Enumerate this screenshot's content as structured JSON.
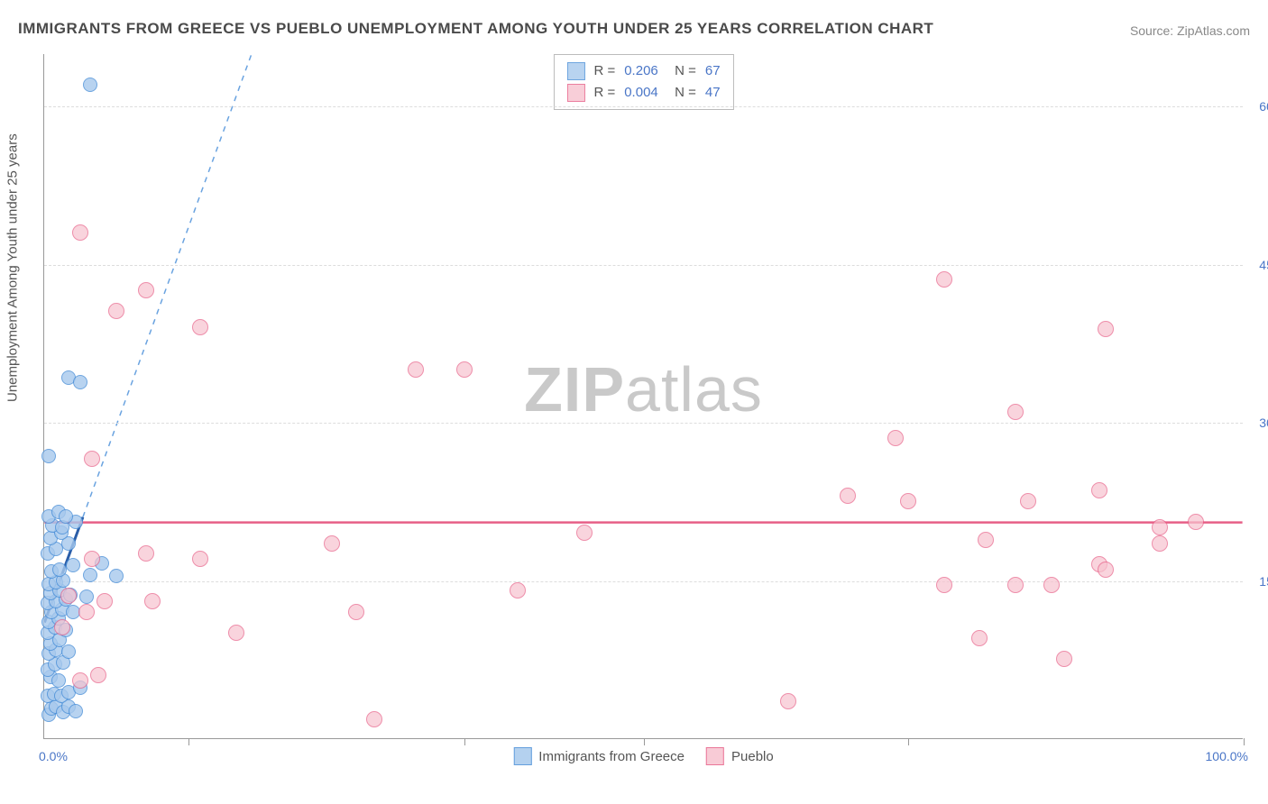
{
  "title": "IMMIGRANTS FROM GREECE VS PUEBLO UNEMPLOYMENT AMONG YOUTH UNDER 25 YEARS CORRELATION CHART",
  "source_label": "Source:",
  "source_name": "ZipAtlas.com",
  "yaxis_title": "Unemployment Among Youth under 25 years",
  "watermark_bold": "ZIP",
  "watermark_rest": "atlas",
  "xlim": [
    0,
    100
  ],
  "ylim": [
    0,
    65
  ],
  "xlabel_min": "0.0%",
  "xlabel_max": "100.0%",
  "yticks": [
    {
      "v": 15,
      "label": "15.0%"
    },
    {
      "v": 30,
      "label": "30.0%"
    },
    {
      "v": 45,
      "label": "45.0%"
    },
    {
      "v": 60,
      "label": "60.0%"
    }
  ],
  "xticks": [
    12,
    35,
    50,
    72,
    100
  ],
  "series": [
    {
      "name": "Immigrants from Greece",
      "color_fill": "#a7c9ed",
      "color_stroke": "#4a8fd8",
      "marker_radius": 8,
      "fill_opacity": 0.55,
      "R": "0.206",
      "N": "67",
      "trend": {
        "type": "line_dashed_extend",
        "x1": 0,
        "y1": 11,
        "x2": 3.2,
        "y2": 21,
        "solid_until_x": 3.2,
        "dash_color": "#6aa3e0",
        "solid_color": "#2a5da8",
        "solid_width": 3,
        "dash_width": 1.5
      },
      "points": [
        [
          0.4,
          2.2
        ],
        [
          0.6,
          2.8
        ],
        [
          1.0,
          3.0
        ],
        [
          1.6,
          2.5
        ],
        [
          2.0,
          3.0
        ],
        [
          2.6,
          2.6
        ],
        [
          0.3,
          4.0
        ],
        [
          0.8,
          4.2
        ],
        [
          1.4,
          4.0
        ],
        [
          2.0,
          4.4
        ],
        [
          3.0,
          4.8
        ],
        [
          0.5,
          5.8
        ],
        [
          1.2,
          5.5
        ],
        [
          0.3,
          6.5
        ],
        [
          0.9,
          7.0
        ],
        [
          1.6,
          7.2
        ],
        [
          0.4,
          8.0
        ],
        [
          1.0,
          8.4
        ],
        [
          2.0,
          8.2
        ],
        [
          0.5,
          9.0
        ],
        [
          1.3,
          9.3
        ],
        [
          0.3,
          10.0
        ],
        [
          0.9,
          10.5
        ],
        [
          1.8,
          10.3
        ],
        [
          0.4,
          11.0
        ],
        [
          1.2,
          11.4
        ],
        [
          0.6,
          12.0
        ],
        [
          1.5,
          12.2
        ],
        [
          2.4,
          12.0
        ],
        [
          0.3,
          12.8
        ],
        [
          1.0,
          13.0
        ],
        [
          1.8,
          13.2
        ],
        [
          0.5,
          13.8
        ],
        [
          1.3,
          14.0
        ],
        [
          2.2,
          13.6
        ],
        [
          3.5,
          13.4
        ],
        [
          0.4,
          14.6
        ],
        [
          1.0,
          14.8
        ],
        [
          1.6,
          15.0
        ],
        [
          3.8,
          15.5
        ],
        [
          6.0,
          15.4
        ],
        [
          0.6,
          15.8
        ],
        [
          1.3,
          16.0
        ],
        [
          2.4,
          16.4
        ],
        [
          4.8,
          16.6
        ],
        [
          0.3,
          17.5
        ],
        [
          1.0,
          18.0
        ],
        [
          2.0,
          18.5
        ],
        [
          0.5,
          19.0
        ],
        [
          1.4,
          19.5
        ],
        [
          0.7,
          20.2
        ],
        [
          1.5,
          20.0
        ],
        [
          2.6,
          20.5
        ],
        [
          0.4,
          21.0
        ],
        [
          1.2,
          21.5
        ],
        [
          1.8,
          21.0
        ],
        [
          0.4,
          26.8
        ],
        [
          2.0,
          34.2
        ],
        [
          3.0,
          33.8
        ],
        [
          3.8,
          62.0
        ]
      ]
    },
    {
      "name": "Pueblo",
      "color_fill": "#f7c3cf",
      "color_stroke": "#e75f87",
      "marker_radius": 9,
      "fill_opacity": 0.45,
      "R": "0.004",
      "N": "47",
      "trend": {
        "type": "hline",
        "y": 20.5,
        "color": "#e75f87",
        "width": 2.5
      },
      "points": [
        [
          3.0,
          5.5
        ],
        [
          4.5,
          6.0
        ],
        [
          1.5,
          10.5
        ],
        [
          2.0,
          13.5
        ],
        [
          3.5,
          12.0
        ],
        [
          5.0,
          13.0
        ],
        [
          9.0,
          13.0
        ],
        [
          16.0,
          10.0
        ],
        [
          4.0,
          17.0
        ],
        [
          8.5,
          17.5
        ],
        [
          13.0,
          17.0
        ],
        [
          24.0,
          18.5
        ],
        [
          26.0,
          12.0
        ],
        [
          27.5,
          1.8
        ],
        [
          39.5,
          14.0
        ],
        [
          45.0,
          19.5
        ],
        [
          62.0,
          3.5
        ],
        [
          4.0,
          26.5
        ],
        [
          6.0,
          40.5
        ],
        [
          8.5,
          42.5
        ],
        [
          3.0,
          48.0
        ],
        [
          13.0,
          39.0
        ],
        [
          31.0,
          35.0
        ],
        [
          35.0,
          35.0
        ],
        [
          67.0,
          23.0
        ],
        [
          71.0,
          28.5
        ],
        [
          72.0,
          22.5
        ],
        [
          75.0,
          14.5
        ],
        [
          75.0,
          43.5
        ],
        [
          78.0,
          9.5
        ],
        [
          78.5,
          18.8
        ],
        [
          81.0,
          14.5
        ],
        [
          81.0,
          31.0
        ],
        [
          82.0,
          22.5
        ],
        [
          84.0,
          14.5
        ],
        [
          85.0,
          7.5
        ],
        [
          88.0,
          16.5
        ],
        [
          88.5,
          16.0
        ],
        [
          88.0,
          23.5
        ],
        [
          88.5,
          38.8
        ],
        [
          93.0,
          20.0
        ],
        [
          93.0,
          18.5
        ],
        [
          96.0,
          20.5
        ]
      ]
    }
  ],
  "legend_top": {
    "R_label": "R",
    "N_label": "N",
    "eq": " = "
  },
  "legend_bottom_labels": [
    "Immigrants from Greece",
    "Pueblo"
  ]
}
